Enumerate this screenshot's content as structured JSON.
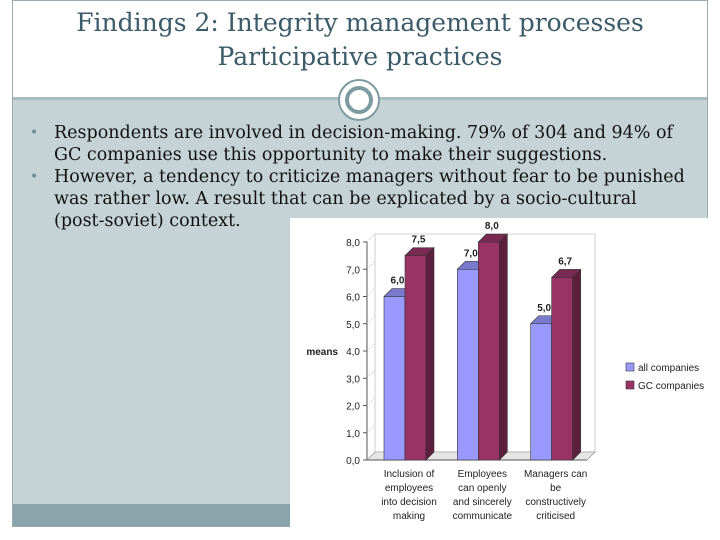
{
  "slide": {
    "title_line1": "Findings 2: Integrity management processes",
    "title_line2": "Participative practices",
    "bullets": [
      "Respondents are involved in decision-making. 79% of 304 and 94% of GC companies use this opportunity to make their suggestions.",
      "However, a tendency to criticize managers without fear to be punished was rather low. A result that can be explicated by a socio-cultural (post-soviet) context."
    ],
    "bullet_glyph": "•"
  },
  "chart_data": {
    "type": "bar",
    "categories": [
      [
        "Inclusion of",
        "employees",
        "into decision",
        "making"
      ],
      [
        "Employees",
        "can openly",
        "and sincerely",
        "communicate"
      ],
      [
        "Managers can",
        "be",
        "constructively",
        "criticised"
      ]
    ],
    "series": [
      {
        "name": "all companies",
        "values": [
          6.0,
          7.0,
          5.0
        ],
        "labels": [
          "6,0",
          "7,0",
          "5,0"
        ],
        "color": "#9999ff"
      },
      {
        "name": "GC companies",
        "values": [
          7.5,
          8.0,
          6.7
        ],
        "labels": [
          "7,5",
          "8,0",
          "6,7"
        ],
        "color": "#993366"
      }
    ],
    "ylabel": "means",
    "ylim": [
      0,
      8
    ],
    "yticks": [
      "0,0",
      "1,0",
      "2,0",
      "3,0",
      "4,0",
      "5,0",
      "6,0",
      "7,0",
      "8,0"
    ],
    "legend": "right",
    "grid": false
  }
}
